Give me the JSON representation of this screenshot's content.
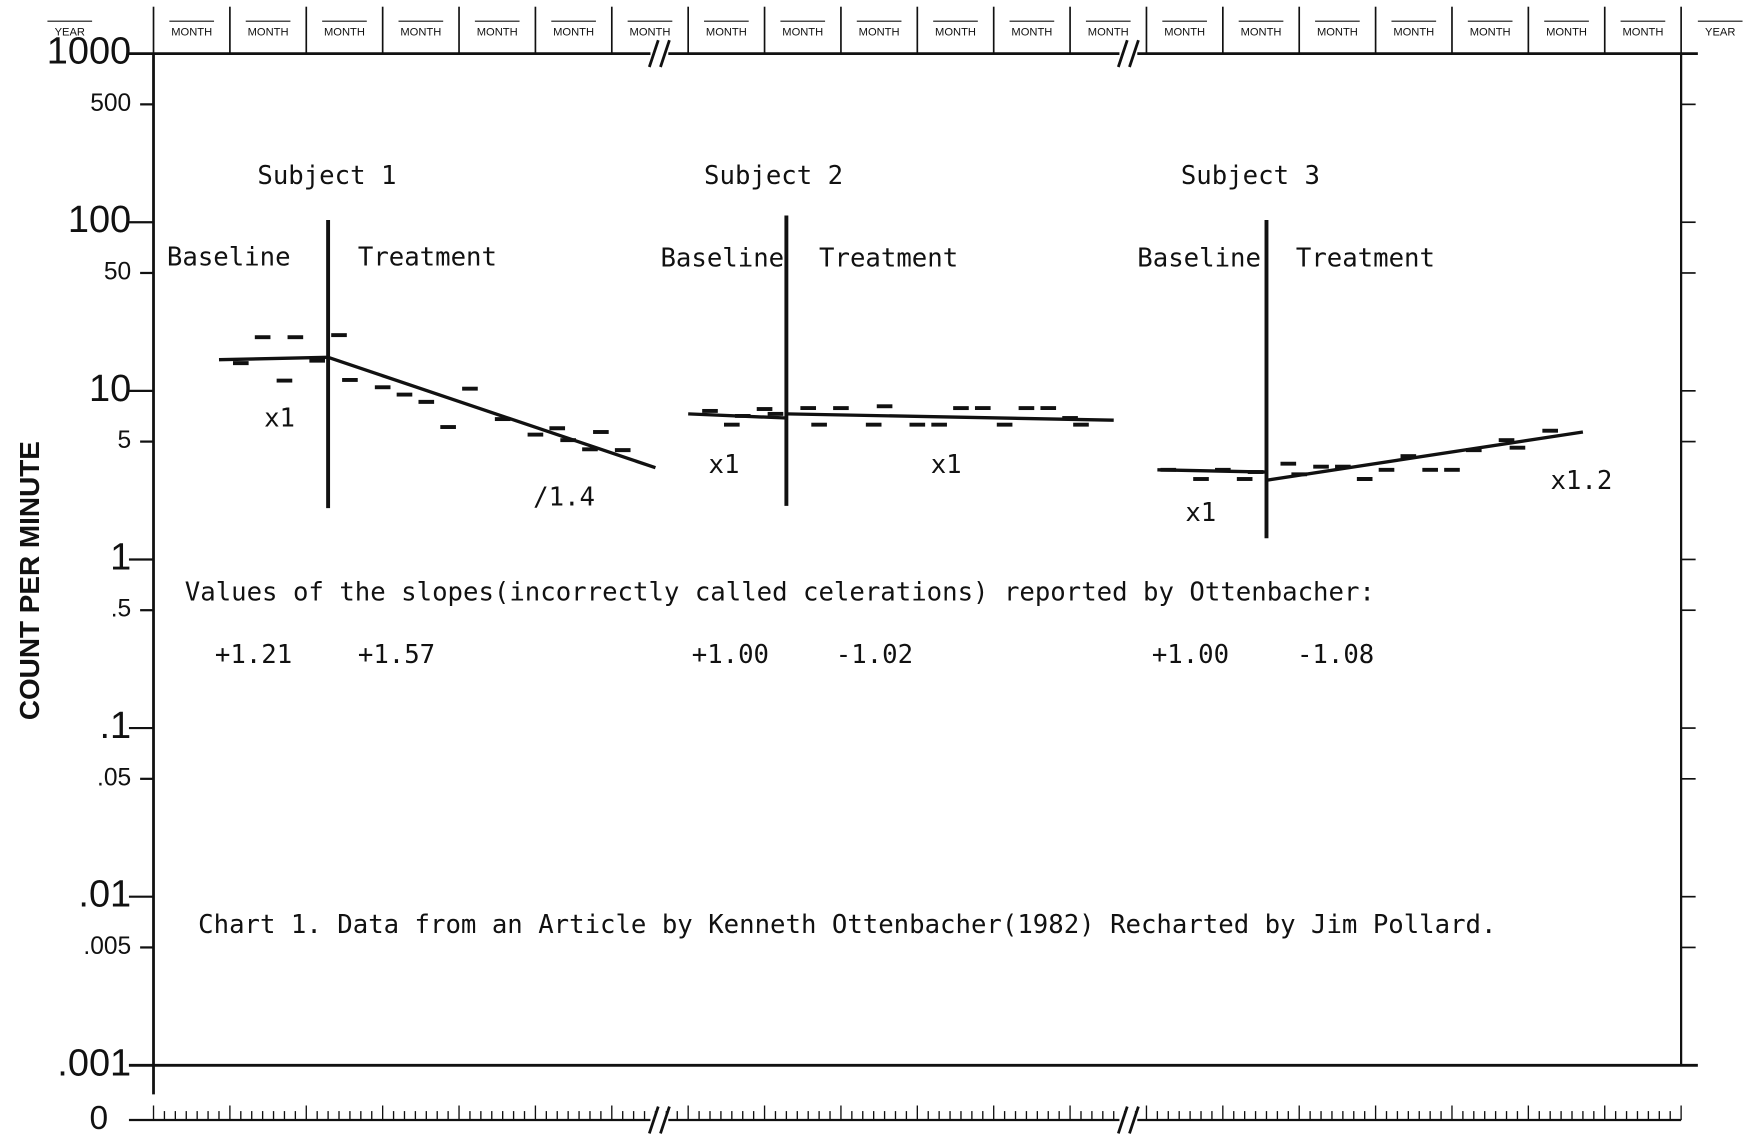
{
  "chart_data": {
    "type": "scatter",
    "ylabel": "COUNT PER MINUTE",
    "ylog": true,
    "ylim": [
      0.001,
      1000
    ],
    "yticks": [
      1000,
      500,
      100,
      50,
      10,
      5,
      1,
      {
        "value": 0.5,
        "label": ".5"
      },
      {
        "value": 0.1,
        "label": ".1"
      },
      {
        "value": 0.05,
        "label": ".05"
      },
      {
        "value": 0.01,
        "label": ".01"
      },
      {
        "value": 0.005,
        "label": ".005"
      },
      {
        "value": 0.001,
        "label": ".001"
      }
    ],
    "zero_label": 0,
    "xlim": [
      0,
      140
    ],
    "period_labels": [
      "YEAR",
      "MONTH",
      "MONTH",
      "MONTH",
      "MONTH",
      "MONTH",
      "MONTH",
      "MONTH",
      "MONTH",
      "MONTH",
      "MONTH",
      "MONTH",
      "MONTH",
      "MONTH",
      "MONTH",
      "MONTH",
      "MONTH",
      "MONTH",
      "MONTH",
      "MONTH",
      "MONTH",
      "YEAR"
    ],
    "color": "#111111",
    "subjects": [
      {
        "name": "Subject 1",
        "phases": [
          "Baseline",
          "Treatment"
        ],
        "phase_change_x": 16,
        "baseline": {
          "x": [
            8,
            10,
            12,
            13,
            15
          ],
          "values": [
            14.6,
            20.8,
            11.5,
            20.8,
            15.1
          ]
        },
        "treatment": {
          "x": [
            17,
            18,
            21,
            23,
            25,
            27,
            29,
            32,
            35,
            37,
            38,
            40,
            41,
            43
          ],
          "values": [
            21.4,
            11.6,
            10.5,
            9.5,
            8.6,
            6.1,
            10.3,
            6.8,
            5.5,
            6.0,
            5.1,
            4.5,
            5.7,
            4.45
          ]
        },
        "trend_lines": [
          {
            "x": [
              6,
              16
            ],
            "values": [
              15.3,
              15.8
            ]
          },
          {
            "x": [
              16,
              46
            ],
            "values": [
              15.8,
              3.5
            ]
          }
        ],
        "celeration_labels": [
          "x1",
          "/1.4"
        ],
        "reported_slopes": [
          "+1.21",
          "+1.57"
        ]
      },
      {
        "name": "Subject 2",
        "phases": [
          "Baseline",
          "Treatment"
        ],
        "phase_change_x": 58,
        "baseline": {
          "x": [
            51,
            53,
            54,
            56,
            57
          ],
          "values": [
            7.6,
            6.3,
            7.1,
            7.8,
            7.3
          ]
        },
        "treatment": {
          "x": [
            60,
            61,
            63,
            66,
            67,
            70,
            72,
            74,
            76,
            78,
            80,
            82,
            84,
            85
          ],
          "values": [
            7.9,
            6.3,
            7.9,
            6.3,
            8.1,
            6.3,
            6.3,
            7.9,
            7.9,
            6.3,
            7.9,
            7.9,
            6.9,
            6.3
          ]
        },
        "trend_lines": [
          {
            "x": [
              49,
              58
            ],
            "values": [
              7.3,
              6.9
            ]
          },
          {
            "x": [
              58,
              88
            ],
            "values": [
              7.3,
              6.7
            ]
          }
        ],
        "celeration_labels": [
          "x1",
          "x1"
        ],
        "reported_slopes": [
          "+1.00",
          "-1.02"
        ]
      },
      {
        "name": "Subject 3",
        "phases": [
          "Baseline",
          "Treatment"
        ],
        "phase_change_x": 102,
        "baseline": {
          "x": [
            93,
            96,
            98,
            100,
            101
          ],
          "values": [
            3.4,
            3.0,
            3.4,
            3.0,
            3.3
          ]
        },
        "treatment": {
          "x": [
            104,
            105,
            107,
            109,
            111,
            113,
            115,
            117,
            119,
            121,
            124,
            125,
            128
          ],
          "values": [
            3.7,
            3.2,
            3.55,
            3.55,
            3.0,
            3.4,
            4.1,
            3.4,
            3.4,
            4.45,
            5.1,
            4.6,
            5.8
          ]
        },
        "trend_lines": [
          {
            "x": [
              92,
              102
            ],
            "values": [
              3.4,
              3.3
            ]
          },
          {
            "x": [
              102,
              131
            ],
            "values": [
              2.95,
              5.7
            ]
          }
        ],
        "celeration_labels": [
          "x1",
          "x1.2"
        ],
        "reported_slopes": [
          "+1.00",
          "-1.08"
        ]
      }
    ],
    "note": "Values of the slopes(incorrectly called celerations) reported by Ottenbacher:",
    "caption": "Chart 1.  Data from an Article by Kenneth Ottenbacher(1982) Recharted by Jim Pollard."
  }
}
